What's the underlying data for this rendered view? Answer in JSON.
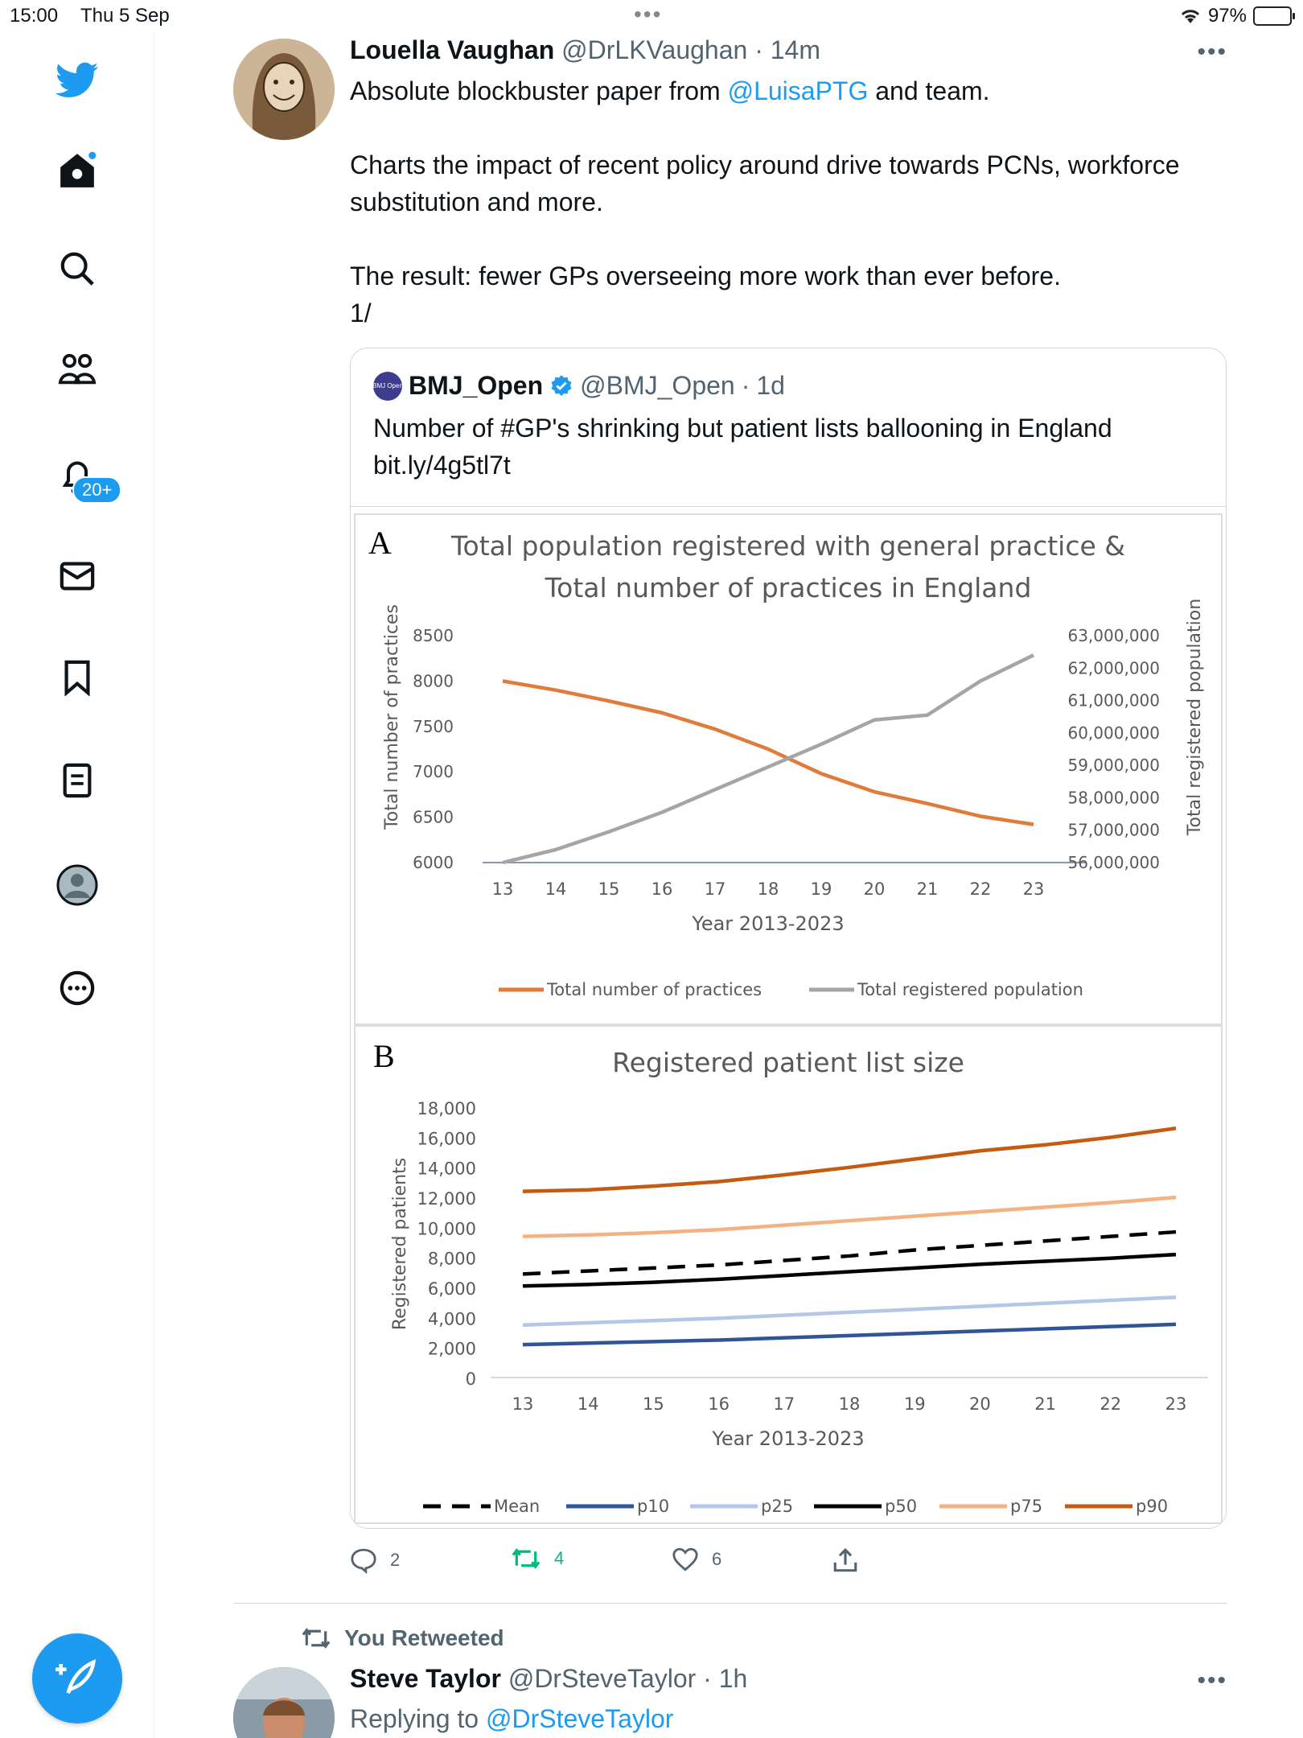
{
  "status_bar": {
    "time": "15:00",
    "date": "Thu 5 Sep",
    "battery": "97%"
  },
  "sidebar": {
    "items": [
      {
        "name": "twitter-logo",
        "icon": "bird-icon"
      },
      {
        "name": "home",
        "icon": "home-icon"
      },
      {
        "name": "explore",
        "icon": "search-icon"
      },
      {
        "name": "communities",
        "icon": "people-icon"
      },
      {
        "name": "notifications",
        "icon": "bell-icon"
      },
      {
        "name": "messages",
        "icon": "mail-icon"
      },
      {
        "name": "bookmarks",
        "icon": "bookmark-icon"
      },
      {
        "name": "lists",
        "icon": "list-icon"
      },
      {
        "name": "profile",
        "icon": "avatar-icon"
      },
      {
        "name": "more",
        "icon": "more-icon"
      }
    ],
    "notification_badge": "20+",
    "compose_icon": "feather-plus-icon"
  },
  "tweet": {
    "author_name": "Louella Vaughan",
    "author_handle": "@DrLKVaughan",
    "time": "14m",
    "text_line1_pre": "Absolute blockbuster paper from ",
    "text_line1_mention": "@LuisaPTG",
    "text_line1_post": " and team.",
    "text_para2": "Charts the impact of recent policy around drive towards PCNs, workforce substitution and more.",
    "text_para3_line1": "The result: fewer GPs overseeing more work than ever before.",
    "text_para3_line2": "1/",
    "quoted": {
      "logo_text": "BMJ Open",
      "author_name": "BMJ_Open",
      "author_handle": "@BMJ_Open",
      "time": "1d",
      "text_line1": "Number of #GP's shrinking but patient lists ballooning in England",
      "text_line2": "bit.ly/4g5tl7t"
    },
    "actions": {
      "replies": "2",
      "retweets": "4",
      "likes": "6"
    }
  },
  "chart_data": [
    {
      "type": "line",
      "panel_label": "A",
      "title_line1": "Total population registered with general practice &",
      "title_line2": "Total number of practices in England",
      "xlabel": "Year 2013-2023",
      "ylabel_left": "Total number of practices",
      "ylabel_right": "Total registered population",
      "x": [
        "13",
        "14",
        "15",
        "16",
        "17",
        "18",
        "19",
        "20",
        "21",
        "22",
        "23"
      ],
      "yticks_left": [
        "6000",
        "6500",
        "7000",
        "7500",
        "8000",
        "8500"
      ],
      "yticks_right": [
        "56,000,000",
        "57,000,000",
        "58,000,000",
        "59,000,000",
        "60,000,000",
        "61,000,000",
        "62,000,000",
        "63,000,000"
      ],
      "ylim_left": [
        6000,
        8500
      ],
      "ylim_right": [
        56000000,
        63000000
      ],
      "legend": "bottom",
      "series": [
        {
          "name": "Total number of practices",
          "axis": "left",
          "color": "#e07b39",
          "values": [
            8000,
            7900,
            7780,
            7650,
            7470,
            7250,
            6980,
            6780,
            6650,
            6510,
            6420
          ]
        },
        {
          "name": "Total registered population",
          "axis": "right",
          "color": "#a5a5a5",
          "values": [
            56000000,
            56400000,
            56950000,
            57550000,
            58250000,
            58950000,
            59650000,
            60400000,
            60550000,
            61600000,
            62400000
          ]
        }
      ]
    },
    {
      "type": "line",
      "panel_label": "B",
      "title": "Registered patient list size",
      "xlabel": "Year 2013-2023",
      "ylabel": "Registered patients",
      "x": [
        "13",
        "14",
        "15",
        "16",
        "17",
        "18",
        "19",
        "20",
        "21",
        "22",
        "23"
      ],
      "yticks": [
        "0",
        "2,000",
        "4,000",
        "6,000",
        "8,000",
        "10,000",
        "12,000",
        "14,000",
        "16,000",
        "18,000"
      ],
      "ylim": [
        0,
        18000
      ],
      "legend": "bottom",
      "series": [
        {
          "name": "Mean",
          "color": "#000000",
          "dashed": true,
          "values": [
            7000,
            7200,
            7400,
            7600,
            7900,
            8200,
            8600,
            8900,
            9200,
            9500,
            9800
          ]
        },
        {
          "name": "p10",
          "color": "#2f5597",
          "values": [
            2300,
            2400,
            2500,
            2600,
            2750,
            2900,
            3050,
            3200,
            3350,
            3500,
            3650
          ]
        },
        {
          "name": "p25",
          "color": "#b4c7e7",
          "values": [
            3600,
            3750,
            3900,
            4050,
            4250,
            4450,
            4650,
            4850,
            5050,
            5250,
            5450
          ]
        },
        {
          "name": "p50",
          "color": "#000000",
          "values": [
            6200,
            6300,
            6450,
            6650,
            6900,
            7150,
            7400,
            7650,
            7850,
            8050,
            8300
          ]
        },
        {
          "name": "p75",
          "color": "#f4b183",
          "values": [
            9500,
            9600,
            9750,
            9950,
            10250,
            10550,
            10850,
            11150,
            11450,
            11750,
            12100
          ]
        },
        {
          "name": "p90",
          "color": "#c55a11",
          "values": [
            12500,
            12600,
            12850,
            13150,
            13600,
            14100,
            14650,
            15200,
            15600,
            16100,
            16700
          ]
        }
      ]
    }
  ],
  "next_tweet": {
    "retweet_banner": "You Retweeted",
    "author_name": "Steve Taylor",
    "author_handle": "@DrSteveTaylor",
    "time": "1h",
    "replying_label": "Replying to ",
    "replying_handle": "@DrSteveTaylor"
  },
  "colors": {
    "accent": "#1d9bf0",
    "retweet": "#00ba7c",
    "secondary_text": "#536471"
  }
}
